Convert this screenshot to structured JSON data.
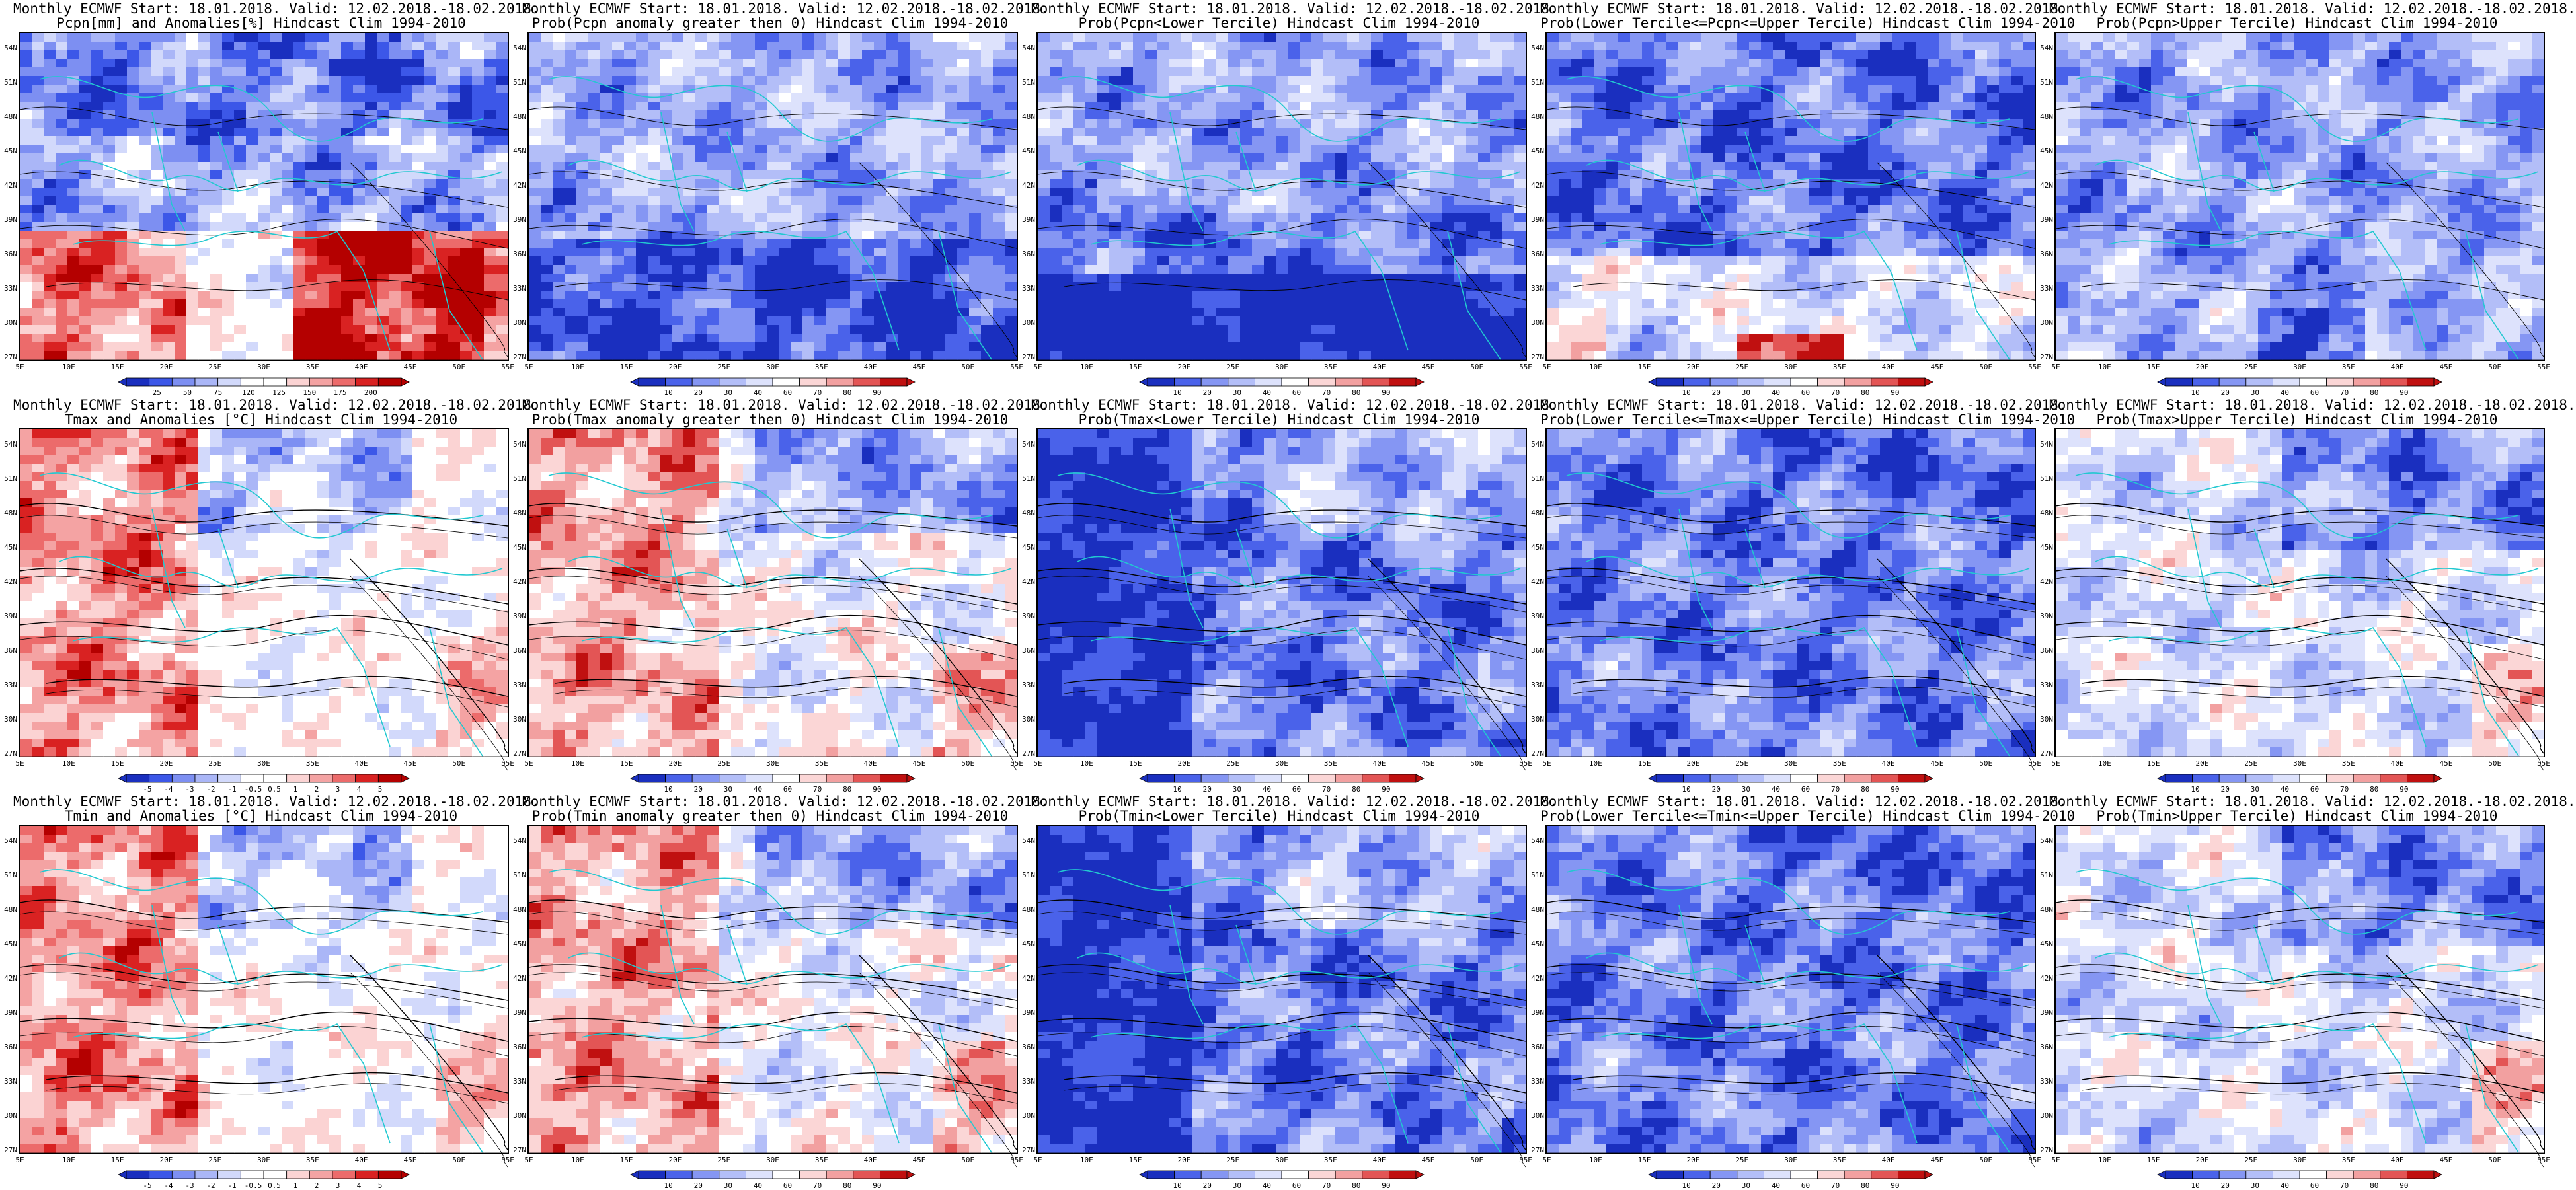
{
  "palettes": {
    "anomaly": [
      "#1a2fbf",
      "#3c57e8",
      "#7d8ff2",
      "#aab6f7",
      "#d2d9fb",
      "#ffffff",
      "#ffffff",
      "#fbd3d3",
      "#f4a3a3",
      "#ec6b6b",
      "#d92222",
      "#b40000"
    ],
    "prob": [
      "#1a2fbf",
      "#4a62ea",
      "#8596f3",
      "#b3bef8",
      "#dde2fc",
      "#ffffff",
      "#fbd6d6",
      "#f2a0a0",
      "#e35555",
      "#c01010"
    ],
    "coast": "#22c8d0",
    "contour": "#000000"
  },
  "axes": {
    "lat_labels": [
      "54N",
      "51N",
      "48N",
      "45N",
      "42N",
      "39N",
      "36N",
      "33N",
      "30N",
      "27N"
    ],
    "lon_labels": [
      "5E",
      "10E",
      "15E",
      "20E",
      "25E",
      "30E",
      "35E",
      "40E",
      "45E",
      "50E",
      "55E"
    ]
  },
  "colorbars": {
    "pcpn_anom": [
      "25",
      "50",
      "75",
      "120",
      "125",
      "150",
      "175",
      "200"
    ],
    "temp_anom": [
      "-5",
      "-4",
      "-3",
      "-2",
      "-1",
      "-0.5",
      "0.5",
      "1",
      "2",
      "3",
      "4",
      "5"
    ],
    "prob": [
      "10",
      "20",
      "30",
      "40",
      "60",
      "70",
      "80",
      "90"
    ]
  },
  "panels": [
    {
      "line1": "Monthly ECMWF Start: 18.01.2018. Valid: 12.02.2018.-18.02.2018.",
      "line2": "Pcpn[mm] and Anomalies[%] Hindcast Clim 1994-2010",
      "scheme": "pcpn_anom",
      "bar": "pcpn_anom"
    },
    {
      "line1": "Monthly ECMWF Start: 18.01.2018. Valid: 12.02.2018.-18.02.2018.",
      "line2": "Prob(Pcpn anomaly greater then 0) Hindcast Clim 1994-2010",
      "scheme": "pcpn_pos",
      "bar": "prob"
    },
    {
      "line1": "Monthly ECMWF Start: 18.01.2018. Valid: 12.02.2018.-18.02.2018.",
      "line2": "Prob(Pcpn<Lower Tercile) Hindcast Clim 1994-2010",
      "scheme": "pcpn_low",
      "bar": "prob"
    },
    {
      "line1": "Monthly ECMWF Start: 18.01.2018. Valid: 12.02.2018.-18.02.2018.",
      "line2": "Prob(Lower Tercile<=Pcpn<=Upper Tercile) Hindcast Clim 1994-2010",
      "scheme": "pcpn_mid",
      "bar": "prob"
    },
    {
      "line1": "Monthly ECMWF Start: 18.01.2018. Valid: 12.02.2018.-18.02.2018.",
      "line2": "Prob(Pcpn>Upper Tercile) Hindcast Clim 1994-2010",
      "scheme": "pcpn_up",
      "bar": "prob"
    },
    {
      "line1": "Monthly ECMWF Start: 18.01.2018. Valid: 12.02.2018.-18.02.2018.",
      "line2": "Tmax and Anomalies [°C] Hindcast Clim 1994-2010",
      "scheme": "t_anom",
      "bar": "temp_anom"
    },
    {
      "line1": "Monthly ECMWF Start: 18.01.2018. Valid: 12.02.2018.-18.02.2018.",
      "line2": "Prob(Tmax anomaly greater then 0) Hindcast Clim 1994-2010",
      "scheme": "t_pos",
      "bar": "prob"
    },
    {
      "line1": "Monthly ECMWF Start: 18.01.2018. Valid: 12.02.2018.-18.02.2018.",
      "line2": "Prob(Tmax<Lower Tercile) Hindcast Clim 1994-2010",
      "scheme": "t_low",
      "bar": "prob"
    },
    {
      "line1": "Monthly ECMWF Start: 18.01.2018. Valid: 12.02.2018.-18.02.2018.",
      "line2": "Prob(Lower Tercile<=Tmax<=Upper Tercile) Hindcast Clim 1994-2010",
      "scheme": "t_mid",
      "bar": "prob"
    },
    {
      "line1": "Monthly ECMWF Start: 18.01.2018. Valid: 12.02.2018.-18.02.2018.",
      "line2": "Prob(Tmax>Upper Tercile) Hindcast Clim 1994-2010",
      "scheme": "t_up",
      "bar": "prob"
    },
    {
      "line1": "Monthly ECMWF Start: 18.01.2018. Valid: 12.02.2018.-18.02.2018.",
      "line2": "Tmin and Anomalies [°C] Hindcast Clim 1994-2010",
      "scheme": "t_anom",
      "bar": "temp_anom"
    },
    {
      "line1": "Monthly ECMWF Start: 18.01.2018. Valid: 12.02.2018.-18.02.2018.",
      "line2": "Prob(Tmin anomaly greater then 0) Hindcast Clim 1994-2010",
      "scheme": "t_pos",
      "bar": "prob"
    },
    {
      "line1": "Monthly ECMWF Start: 18.01.2018. Valid: 12.02.2018.-18.02.2018.",
      "line2": "Prob(Tmin<Lower Tercile) Hindcast Clim 1994-2010",
      "scheme": "t_low",
      "bar": "prob"
    },
    {
      "line1": "Monthly ECMWF Start: 18.01.2018. Valid: 12.02.2018.-18.02.2018.",
      "line2": "Prob(Lower Tercile<=Tmin<=Upper Tercile) Hindcast Clim 1994-2010",
      "scheme": "t_mid",
      "bar": "prob"
    },
    {
      "line1": "Monthly ECMWF Start: 18.01.2018. Valid: 12.02.2018.-18.02.2018.",
      "line2": "Prob(Tmin>Upper Tercile) Hindcast Clim 1994-2010",
      "scheme": "t_up",
      "bar": "prob"
    }
  ]
}
